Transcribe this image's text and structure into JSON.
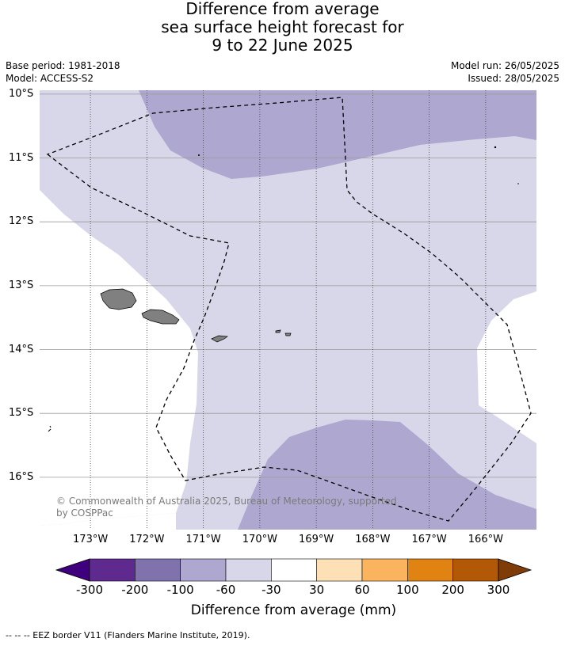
{
  "title": {
    "line1": "Difference from average",
    "line2": "sea surface height forecast for",
    "line3": "9 to 22 June 2025"
  },
  "meta": {
    "base_period": "Base period: 1981-2018",
    "model": "Model: ACCESS-S2",
    "model_run": "Model run: 26/05/2025",
    "issued": "Issued: 28/05/2025"
  },
  "map": {
    "lon_range": [
      -173.9,
      -165.1
    ],
    "lat_range": [
      -16.82,
      -9.94
    ],
    "lat_labels": [
      "10°S",
      "11°S",
      "12°S",
      "13°S",
      "14°S",
      "15°S",
      "16°S"
    ],
    "lat_values": [
      -10,
      -11,
      -12,
      -13,
      -14,
      -15,
      -16
    ],
    "lon_labels": [
      "173°W",
      "172°W",
      "171°W",
      "170°W",
      "169°W",
      "168°W",
      "167°W",
      "166°W"
    ],
    "lon_values": [
      -173,
      -172,
      -171,
      -170,
      -169,
      -168,
      -167,
      -166
    ],
    "ocean_color": "#ffffff",
    "land_color": "#808080"
  },
  "copyright": "© Commonwealth of Australia 2025, Bureau of Meteorology, supported by COSPPac",
  "colorbar": {
    "title": "Difference from average (mm)",
    "tick_labels": [
      "-300",
      "-200",
      "-100",
      "-60",
      "-30",
      "30",
      "60",
      "100",
      "200",
      "300"
    ],
    "colors": [
      "#3f007d",
      "#5f2a90",
      "#8073ad",
      "#aea8d0",
      "#d7d7e9",
      "#ffffff",
      "#fee0b6",
      "#fbb45e",
      "#e08313",
      "#b35806",
      "#7f3b08"
    ]
  },
  "footer": "-- -- -- EEZ border V11 (Flanders Marine Institute, 2019)."
}
